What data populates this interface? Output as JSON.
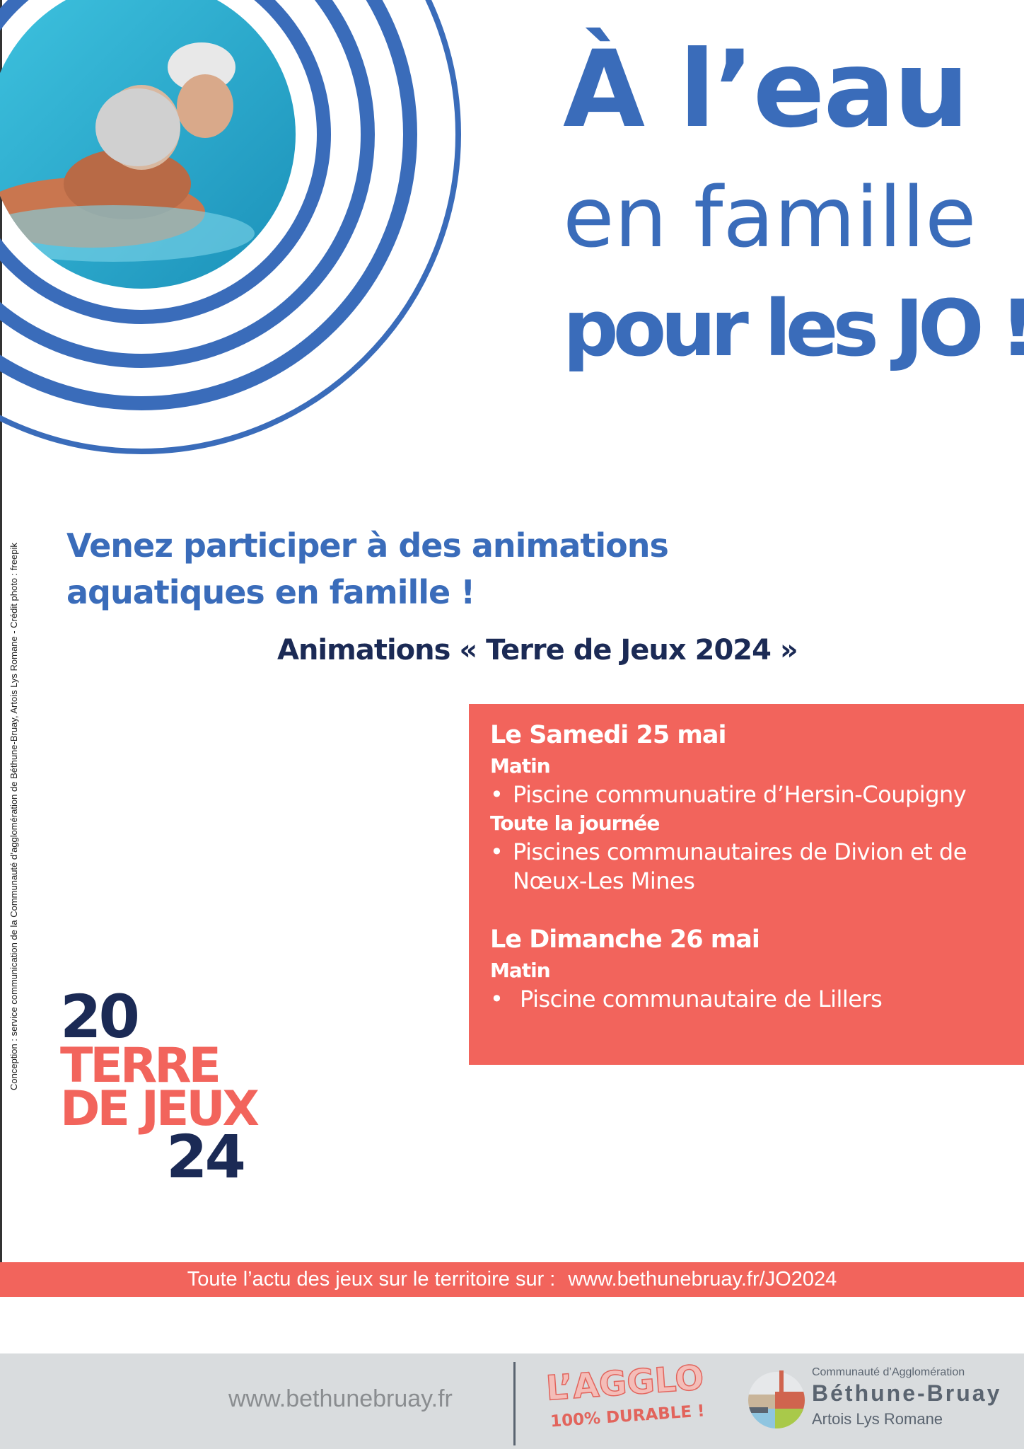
{
  "headline": {
    "line1": "À l’eau",
    "line2": "en famille",
    "line3": "pour les JO !"
  },
  "intro": "Venez participer à des animations aquatiques en famille !",
  "animations_title": "Animations « Terre de Jeux 2024 »",
  "schedule": {
    "day1": {
      "date": "Le Samedi 25 mai",
      "slot1": "Matin",
      "item1": "Piscine communuatire d’Hersin-Coupigny",
      "slot2": "Toute la journée",
      "item2": "Piscines communautaires de Divion et de Nœux-Les Mines"
    },
    "day2": {
      "date": "Le Dimanche 26 mai",
      "slot1": "Matin",
      "item1": "Piscine communautaire de Lillers"
    }
  },
  "bullet": "•",
  "credit": "Conception : service communication de la Communauté d’agglomération de Béthune-Bruay, Artois Lys Romane - Crédit photo : freepik",
  "logo_terre": {
    "top": "20",
    "mid1": "TERRE",
    "mid2": "DE JEUX",
    "bottom": "24"
  },
  "banner": {
    "text": "Toute l’actu des jeux sur le territoire sur :",
    "url": "www.bethunebruay.fr/JO2024"
  },
  "footer": {
    "site": "www.bethunebruay.fr",
    "agglo": "L’AGGLO",
    "durable": "100% DURABLE !",
    "ca_line1": "Communauté d’Agglomération",
    "ca_line2": "Béthune-Bruay",
    "ca_line3": "Artois Lys Romane"
  },
  "colors": {
    "blue": "#3a6cba",
    "coral": "#f2645c",
    "navy": "#1b2a55",
    "footer_gray": "#d9dcde"
  }
}
